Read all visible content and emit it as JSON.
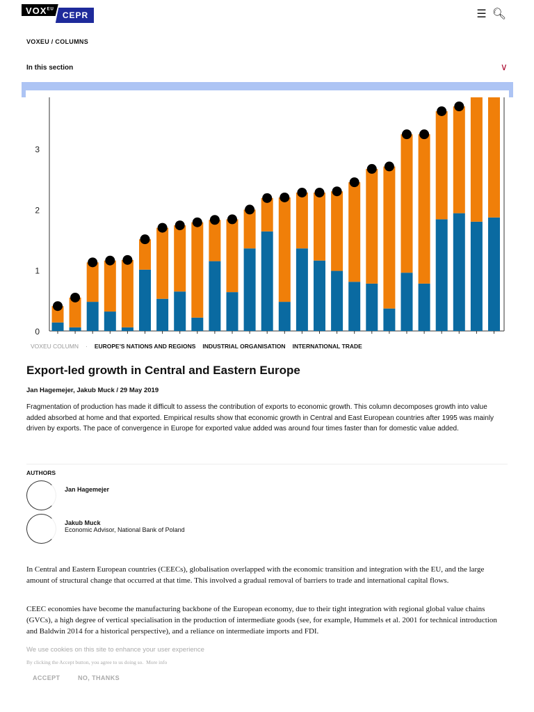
{
  "header": {
    "logo_vox": "VOX",
    "logo_sup": "EU",
    "logo_cepr": "CEPR",
    "menu_icon": "hamburger-icon",
    "search_icon": "search-icon"
  },
  "breadcrumb": "VOXEU / COLUMNS",
  "section": {
    "label": "In this section",
    "icon": "chevron-down-icon"
  },
  "colors": {
    "blue": "#0a6aa1",
    "orange": "#f07f09",
    "dot": "#000000",
    "accent": "#b0163a",
    "strip": "#adc4f4"
  },
  "chart_data": {
    "type": "bar",
    "stacked": true,
    "yticks": [
      "0",
      "1",
      "2",
      "3"
    ],
    "ylim": [
      0,
      4
    ],
    "series": [
      {
        "values": [
          0.14,
          0.06,
          0.48,
          0.32,
          0.06,
          1.01,
          0.53,
          0.65,
          0.22,
          1.15,
          0.64,
          1.36,
          1.64,
          0.48,
          1.36,
          1.16,
          0.99,
          0.81,
          0.78,
          0.37,
          0.96,
          0.78,
          1.84,
          1.94,
          1.8,
          1.87
        ]
      },
      {
        "values": [
          0.27,
          0.49,
          0.65,
          0.84,
          1.11,
          0.5,
          1.17,
          1.09,
          1.57,
          0.68,
          1.2,
          0.64,
          0.55,
          1.72,
          0.92,
          1.12,
          1.31,
          1.64,
          1.89,
          2.34,
          2.28,
          2.46,
          1.78,
          1.76,
          2.4,
          2.4
        ]
      }
    ],
    "totals": [
      0.41,
      0.55,
      1.13,
      1.16,
      1.17,
      1.51,
      1.7,
      1.74,
      1.79,
      1.83,
      1.84,
      2.0,
      2.19,
      2.2,
      2.28,
      2.28,
      2.3,
      2.45,
      2.67,
      2.71,
      3.24,
      3.24,
      3.62,
      3.7,
      null,
      null
    ]
  },
  "tags": [
    "VOXEU COLUMN",
    "EUROPE'S NATIONS AND REGIONS",
    "INDUSTRIAL ORGANISATION",
    "INTERNATIONAL TRADE"
  ],
  "article": {
    "title": "Export-led growth in Central and Eastern Europe",
    "byline": "Jan Hagemejer, Jakub Muck / 29 May 2019",
    "summary": "Fragmentation of production has made it difficult to assess the contribution of exports to economic growth. This column decomposes growth into value added absorbed at home and that exported. Empirical results show that economic growth in Central and East European countries after 1995 was mainly driven by exports. The pace of convergence in Europe for exported value added was around four times faster than for domestic value added.",
    "authors_heading": "AUTHORS",
    "authors": [
      {
        "name": "Jan Hagemejer",
        "role": ""
      },
      {
        "name": "Jakub Muck",
        "role": "Economic Advisor, National Bank of Poland"
      }
    ],
    "paragraphs": [
      "In Central and Eastern European countries (CEECs), globalisation overlapped with the economic transition and integration with the EU, and the large amount of structural change that occurred at that time. This involved a gradual removal of barriers to trade and international capital flows.",
      "CEEC economies have become the manufacturing backbone of the European economy, due to their tight integration with regional global value chains (GVCs), a high degree of vertical specialisation in the production of intermediate goods (see, for example, Hummels et al. 2001 for technical introduction and Baldwin 2014 for a historical perspective), and a reliance on intermediate imports and FDI."
    ]
  },
  "cookie": {
    "title": "We use cookies on this site to enhance your user experience",
    "text": "By clicking the Accept button, you agree to us doing so.",
    "more": "More info",
    "accept": "ACCEPT",
    "decline": "NO, THANKS"
  }
}
